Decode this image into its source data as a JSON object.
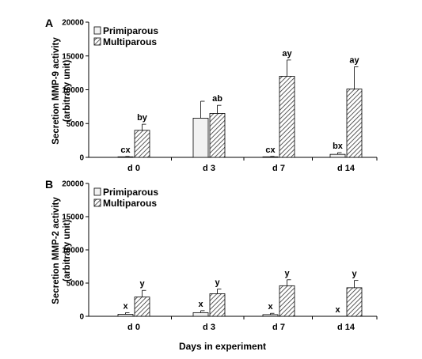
{
  "figure": {
    "xlabel": "Days in experiment"
  },
  "colors": {
    "primiparous_fill": "#f2f2f2",
    "multiparous_fill": "hatched",
    "axis": "#000000"
  },
  "chart_data": [
    {
      "type": "bar",
      "panel_label": "A",
      "ylabel": [
        "Secretion MMP-9 activity",
        "(arbitrary unit)"
      ],
      "ylim": [
        0,
        20000
      ],
      "yticks": [
        0,
        5000,
        10000,
        15000,
        20000
      ],
      "categories": [
        "d 0",
        "d 3",
        "d 7",
        "d 14"
      ],
      "legend_position": "top-left",
      "grid": false,
      "series": [
        {
          "name": "Primiparous",
          "values": [
            80,
            5800,
            80,
            450
          ],
          "errors": [
            50,
            2500,
            50,
            250
          ],
          "labels": [
            "cx",
            "",
            "cx",
            "bx"
          ]
        },
        {
          "name": "Multiparous",
          "values": [
            4000,
            6500,
            12000,
            10100
          ],
          "errors": [
            900,
            1200,
            2400,
            3300
          ],
          "labels": [
            "by",
            "ab",
            "ay",
            "ay"
          ]
        }
      ]
    },
    {
      "type": "bar",
      "panel_label": "B",
      "ylabel": [
        "Secretion MMP-2 activity",
        "(arbitrary unit)"
      ],
      "ylim": [
        0,
        20000
      ],
      "yticks": [
        0,
        5000,
        10000,
        15000,
        20000
      ],
      "categories": [
        "d 0",
        "d 3",
        "d 7",
        "d 14"
      ],
      "legend_position": "top-left",
      "grid": false,
      "series": [
        {
          "name": "Primiparous",
          "values": [
            300,
            550,
            250,
            0
          ],
          "errors": [
            250,
            300,
            200,
            0
          ],
          "labels": [
            "x",
            "x",
            "x",
            "x"
          ]
        },
        {
          "name": "Multiparous",
          "values": [
            2900,
            3400,
            4600,
            4300
          ],
          "errors": [
            1000,
            700,
            900,
            1100
          ],
          "labels": [
            "y",
            "y",
            "y",
            "y"
          ]
        }
      ]
    }
  ]
}
